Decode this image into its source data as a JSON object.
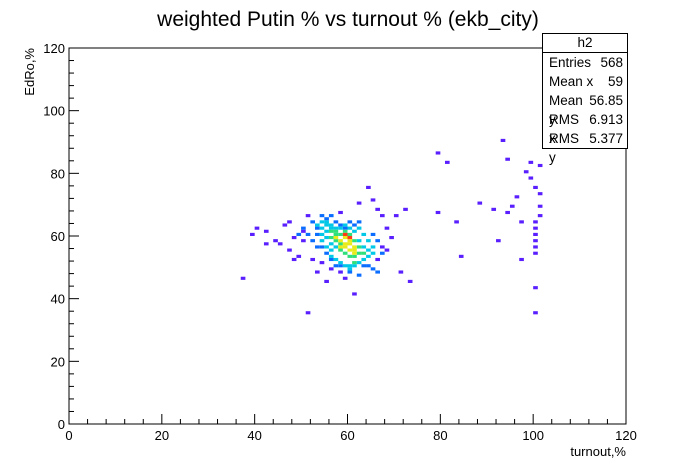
{
  "chart_data": {
    "type": "heatmap",
    "title": "weighted Putin % vs turnout % (ekb_city)",
    "xlabel": "turnout,%",
    "ylabel": "EdRo,%",
    "xlim": [
      0,
      120
    ],
    "ylim": [
      0,
      120
    ],
    "xticks": [
      0,
      20,
      40,
      60,
      80,
      100,
      120
    ],
    "yticks": [
      0,
      20,
      40,
      60,
      80,
      100,
      120
    ],
    "grid": false,
    "stats_box": {
      "name": "h2",
      "rows": [
        {
          "label": "Entries",
          "value": "568"
        },
        {
          "label": "Mean x",
          "value": "59"
        },
        {
          "label": "Mean y",
          "value": "56.85"
        },
        {
          "label": "RMS x",
          "value": "6.913"
        },
        {
          "label": "RMS y",
          "value": "5.377"
        }
      ]
    },
    "bin_size": [
      1,
      1
    ],
    "bins": [
      [
        37,
        46,
        1
      ],
      [
        39,
        60,
        1
      ],
      [
        40,
        62,
        1
      ],
      [
        42,
        61,
        1
      ],
      [
        42,
        57,
        1
      ],
      [
        44,
        58,
        1
      ],
      [
        46,
        63,
        1
      ],
      [
        45,
        57,
        1
      ],
      [
        47,
        55,
        1
      ],
      [
        48,
        52,
        1
      ],
      [
        47,
        64,
        1
      ],
      [
        48,
        59,
        1
      ],
      [
        49,
        53,
        1
      ],
      [
        50,
        58,
        1
      ],
      [
        50,
        61,
        1
      ],
      [
        51,
        66,
        1
      ],
      [
        51,
        35,
        1
      ],
      [
        52,
        52,
        1
      ],
      [
        53,
        48,
        1
      ],
      [
        54,
        51,
        1
      ],
      [
        55,
        45,
        1
      ],
      [
        56,
        49,
        1
      ],
      [
        58,
        67,
        1
      ],
      [
        58,
        48,
        1
      ],
      [
        59,
        46,
        1
      ],
      [
        61,
        41,
        1
      ],
      [
        62,
        70,
        1
      ],
      [
        64,
        75,
        1
      ],
      [
        65,
        71,
        1
      ],
      [
        66,
        68,
        1
      ],
      [
        67,
        66,
        1
      ],
      [
        68,
        62,
        1
      ],
      [
        68,
        55,
        1
      ],
      [
        69,
        59,
        1
      ],
      [
        70,
        66,
        1
      ],
      [
        71,
        48,
        1
      ],
      [
        73,
        45,
        1
      ],
      [
        66,
        52,
        1
      ],
      [
        67,
        56,
        1
      ],
      [
        72,
        68,
        1
      ],
      [
        79,
        86,
        1
      ],
      [
        81,
        83,
        1
      ],
      [
        79,
        67,
        1
      ],
      [
        83,
        64,
        1
      ],
      [
        84,
        53,
        1
      ],
      [
        88,
        70,
        1
      ],
      [
        91,
        68,
        1
      ],
      [
        92,
        58,
        1
      ],
      [
        93,
        90,
        1
      ],
      [
        94,
        84,
        1
      ],
      [
        94,
        67,
        1
      ],
      [
        95,
        69,
        1
      ],
      [
        96,
        72,
        1
      ],
      [
        97,
        64,
        1
      ],
      [
        97,
        52,
        1
      ],
      [
        98,
        80,
        1
      ],
      [
        99,
        83,
        1
      ],
      [
        99,
        78,
        1
      ],
      [
        100,
        75,
        1
      ],
      [
        100,
        62,
        1
      ],
      [
        100,
        60,
        1
      ],
      [
        100,
        58,
        1
      ],
      [
        100,
        56,
        1
      ],
      [
        100,
        54,
        1
      ],
      [
        100,
        43,
        1
      ],
      [
        100,
        35,
        1
      ],
      [
        101,
        82,
        1
      ],
      [
        101,
        73,
        1
      ],
      [
        101,
        69,
        1
      ],
      [
        101,
        66,
        1
      ],
      [
        100,
        64,
        1
      ],
      [
        52,
        64,
        2
      ],
      [
        53,
        62,
        2
      ],
      [
        53,
        60,
        2
      ],
      [
        54,
        56,
        2
      ],
      [
        55,
        54,
        2
      ],
      [
        56,
        52,
        2
      ],
      [
        57,
        50,
        2
      ],
      [
        58,
        50,
        2
      ],
      [
        63,
        50,
        2
      ],
      [
        64,
        50,
        2
      ],
      [
        65,
        49,
        2
      ],
      [
        66,
        48,
        2
      ],
      [
        62,
        64,
        2
      ],
      [
        61,
        63,
        2
      ],
      [
        65,
        60,
        2
      ],
      [
        66,
        58,
        2
      ],
      [
        67,
        54,
        2
      ],
      [
        50,
        62,
        2
      ],
      [
        51,
        60,
        2
      ],
      [
        52,
        58,
        2
      ],
      [
        53,
        56,
        2
      ],
      [
        49,
        60,
        2
      ],
      [
        54,
        66,
        2
      ],
      [
        55,
        65,
        2
      ],
      [
        56,
        66,
        2
      ],
      [
        57,
        64,
        2
      ],
      [
        58,
        63,
        2
      ],
      [
        59,
        62,
        2
      ],
      [
        60,
        64,
        2
      ],
      [
        60,
        48,
        2
      ],
      [
        62,
        47,
        2
      ],
      [
        53,
        63,
        3
      ],
      [
        54,
        64,
        3
      ],
      [
        54,
        62,
        3
      ],
      [
        54,
        60,
        3
      ],
      [
        54,
        58,
        3
      ],
      [
        55,
        56,
        3
      ],
      [
        56,
        55,
        3
      ],
      [
        56,
        53,
        3
      ],
      [
        57,
        52,
        3
      ],
      [
        58,
        51,
        3
      ],
      [
        59,
        50,
        3
      ],
      [
        60,
        50,
        3
      ],
      [
        61,
        50,
        3
      ],
      [
        62,
        51,
        3
      ],
      [
        63,
        52,
        3
      ],
      [
        64,
        53,
        3
      ],
      [
        65,
        54,
        3
      ],
      [
        65,
        56,
        3
      ],
      [
        64,
        58,
        3
      ],
      [
        63,
        60,
        3
      ],
      [
        62,
        62,
        3
      ],
      [
        61,
        61,
        3
      ],
      [
        60,
        62,
        3
      ],
      [
        59,
        63,
        3
      ],
      [
        58,
        62,
        3
      ],
      [
        57,
        62,
        3
      ],
      [
        56,
        63,
        3
      ],
      [
        55,
        63,
        3
      ],
      [
        55,
        61,
        3
      ],
      [
        55,
        59,
        3
      ],
      [
        56,
        57,
        3
      ],
      [
        57,
        56,
        3
      ],
      [
        62,
        58,
        3
      ],
      [
        63,
        56,
        3
      ],
      [
        64,
        55,
        3
      ],
      [
        55,
        64,
        3
      ],
      [
        56,
        62,
        3
      ],
      [
        60,
        49,
        3
      ],
      [
        56,
        61,
        4
      ],
      [
        57,
        60,
        4
      ],
      [
        57,
        58,
        4
      ],
      [
        58,
        57,
        4
      ],
      [
        58,
        55,
        4
      ],
      [
        59,
        54,
        4
      ],
      [
        60,
        53,
        4
      ],
      [
        61,
        53,
        4
      ],
      [
        62,
        54,
        4
      ],
      [
        62,
        56,
        4
      ],
      [
        61,
        58,
        4
      ],
      [
        60,
        60,
        4
      ],
      [
        59,
        61,
        4
      ],
      [
        58,
        60,
        4
      ],
      [
        57,
        61,
        4
      ],
      [
        56,
        59,
        4
      ],
      [
        63,
        54,
        4
      ],
      [
        61,
        51,
        4
      ],
      [
        57,
        59,
        5
      ],
      [
        58,
        58,
        5
      ],
      [
        58,
        56,
        5
      ],
      [
        59,
        56,
        5
      ],
      [
        60,
        55,
        5
      ],
      [
        61,
        55,
        5
      ],
      [
        61,
        56,
        5
      ],
      [
        60,
        58,
        5
      ],
      [
        59,
        59,
        5
      ],
      [
        60,
        57,
        5
      ],
      [
        61,
        54,
        5
      ],
      [
        59,
        57,
        5
      ],
      [
        59,
        60,
        6
      ],
      [
        60,
        59,
        6
      ]
    ]
  }
}
